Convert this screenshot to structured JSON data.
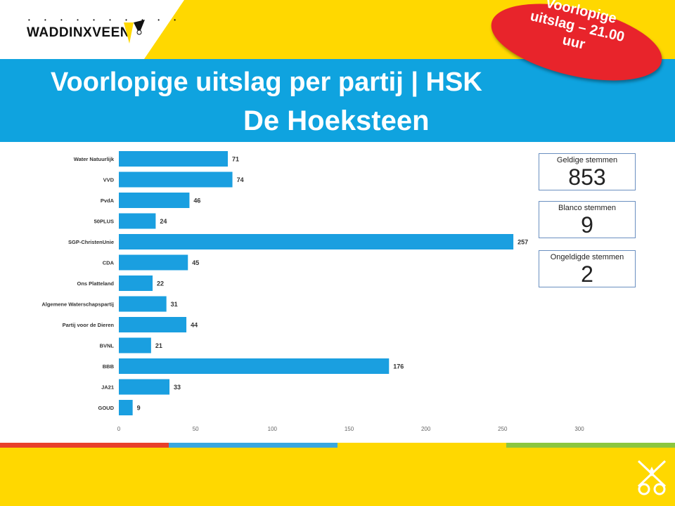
{
  "header": {
    "logo_text": "WADDINXVEEN",
    "title_line1": "Voorlopige uitslag per partij | HSK",
    "title_line2": "De Hoeksteen",
    "badge_text": "Voorlopige uitslag – 21.00 uur"
  },
  "stats": [
    {
      "label": "Geldige stemmen",
      "value": "853"
    },
    {
      "label": "Blanco stemmen",
      "value": "9"
    },
    {
      "label": "Ongeldigde stemmen",
      "value": "2"
    }
  ],
  "colors": {
    "yellow": "#ffd800",
    "blue": "#0fa3df",
    "bar": "#1a9fe0",
    "badge_red": "#e8242b",
    "stripes": [
      "#e8402a",
      "#3aa7e0",
      "#ffd800",
      "#8cc63f"
    ]
  },
  "chart_data": {
    "type": "bar",
    "orientation": "horizontal",
    "categories": [
      "Water Natuurlijk",
      "VVD",
      "PvdA",
      "50PLUS",
      "SGP-ChristenUnie",
      "CDA",
      "Ons Platteland",
      "Algemene Waterschapspartij",
      "Partij voor de Dieren",
      "BVNL",
      "BBB",
      "JA21",
      "GOUD"
    ],
    "values": [
      71,
      74,
      46,
      24,
      257,
      45,
      22,
      31,
      44,
      21,
      176,
      33,
      9
    ],
    "xlim": [
      0,
      300
    ],
    "xticks": [
      0,
      50,
      100,
      150,
      200,
      250,
      300
    ],
    "grid": false,
    "data_labels": true
  }
}
